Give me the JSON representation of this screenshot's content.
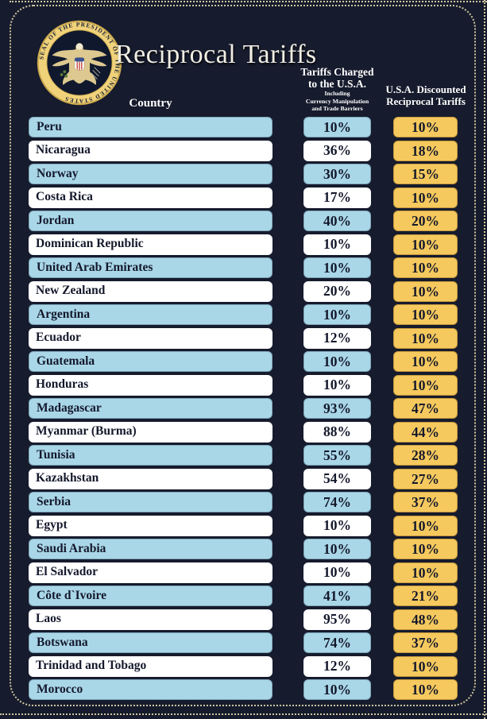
{
  "page": {
    "title": "Reciprocal Tariffs",
    "seal_ring_text": "SEAL OF THE PRESIDENT OF THE UNITED STATES"
  },
  "columns": {
    "country": "Country",
    "charged": {
      "line1": "Tariffs Charged",
      "line2": "to the U.S.A.",
      "sub1": "Including",
      "sub2": "Currency Manipulation",
      "sub3": "and Trade Barriers"
    },
    "discounted": {
      "line1": "U.S.A. Discounted",
      "line2": "Reciprocal Tariffs"
    }
  },
  "colors": {
    "background": "#161b2d",
    "row_blue": "#a9d7e8",
    "row_white": "#ffffff",
    "accent_gold": "#f5c95e",
    "text_dark": "#14182b",
    "header_text": "#ffffff",
    "dotted_border": "#cfc7a0",
    "seal_gold": "#e9c767"
  },
  "chart_data": {
    "type": "table",
    "title": "Reciprocal Tariffs",
    "columns": [
      "Country",
      "Tariffs Charged to the U.S.A. Including Currency Manipulation and Trade Barriers",
      "U.S.A. Discounted Reciprocal Tariffs"
    ],
    "rows": [
      [
        "Peru",
        "10%",
        "10%"
      ],
      [
        "Nicaragua",
        "36%",
        "18%"
      ],
      [
        "Norway",
        "30%",
        "15%"
      ],
      [
        "Costa Rica",
        "17%",
        "10%"
      ],
      [
        "Jordan",
        "40%",
        "20%"
      ],
      [
        "Dominican Republic",
        "10%",
        "10%"
      ],
      [
        "United Arab Emirates",
        "10%",
        "10%"
      ],
      [
        "New Zealand",
        "20%",
        "10%"
      ],
      [
        "Argentina",
        "10%",
        "10%"
      ],
      [
        "Ecuador",
        "12%",
        "10%"
      ],
      [
        "Guatemala",
        "10%",
        "10%"
      ],
      [
        "Honduras",
        "10%",
        "10%"
      ],
      [
        "Madagascar",
        "93%",
        "47%"
      ],
      [
        "Myanmar (Burma)",
        "88%",
        "44%"
      ],
      [
        "Tunisia",
        "55%",
        "28%"
      ],
      [
        "Kazakhstan",
        "54%",
        "27%"
      ],
      [
        "Serbia",
        "74%",
        "37%"
      ],
      [
        "Egypt",
        "10%",
        "10%"
      ],
      [
        "Saudi Arabia",
        "10%",
        "10%"
      ],
      [
        "El Salvador",
        "10%",
        "10%"
      ],
      [
        "Côte d`Ivoire",
        "41%",
        "21%"
      ],
      [
        "Laos",
        "95%",
        "48%"
      ],
      [
        "Botswana",
        "74%",
        "37%"
      ],
      [
        "Trinidad and Tobago",
        "12%",
        "10%"
      ],
      [
        "Morocco",
        "10%",
        "10%"
      ]
    ]
  }
}
